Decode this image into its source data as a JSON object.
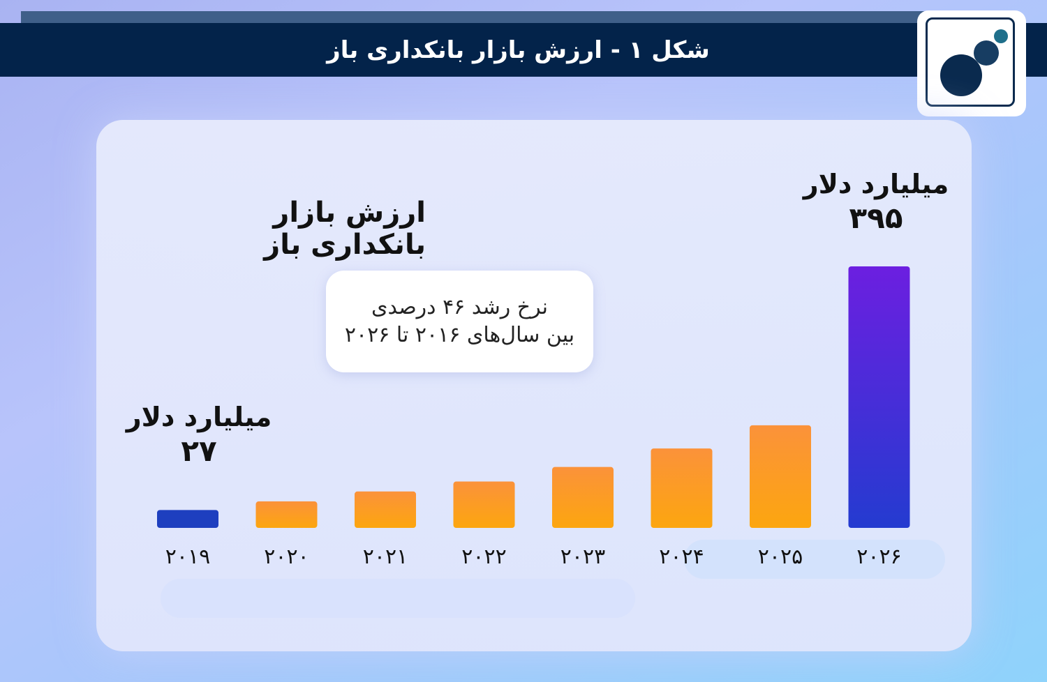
{
  "header": {
    "title": "شکل ۱ - ارزش بازار بانکداری باز"
  },
  "callout": {
    "line1": "نرخ رشد ۴۶ درصدی",
    "line2": "بین سال‌های ۲۰۱۶ تا ۲۰۲۶"
  },
  "colors": {
    "header_bg": "#03234a",
    "bar_orange_top": "#fb923a",
    "bar_orange_bottom": "#fca60f",
    "bar_first": "#1e3fbf",
    "bar_last_top": "#6c1fe0",
    "bar_last_bottom": "#243bd0",
    "logo_dark": "#0a2a4e",
    "logo_accent": "#1f6f8b"
  },
  "chart_data": {
    "type": "bar",
    "title": "ارزش بازار بانکداری باز",
    "categories": [
      "۲۰۱۹",
      "۲۰۲۰",
      "۲۰۲۱",
      "۲۰۲۲",
      "۲۰۲۳",
      "۲۰۲۴",
      "۲۰۲۵",
      "۲۰۲۶"
    ],
    "values": [
      27,
      40,
      55,
      70,
      92,
      120,
      155,
      395
    ],
    "ylim": [
      0,
      400
    ],
    "grid": false,
    "annotations": [
      {
        "category": "۲۰۱۹",
        "unit": "میلیارد دلار",
        "value": "۲۷"
      },
      {
        "category": "۲۰۲۶",
        "unit": "میلیارد دلار",
        "value": "۳۹۵"
      }
    ]
  }
}
